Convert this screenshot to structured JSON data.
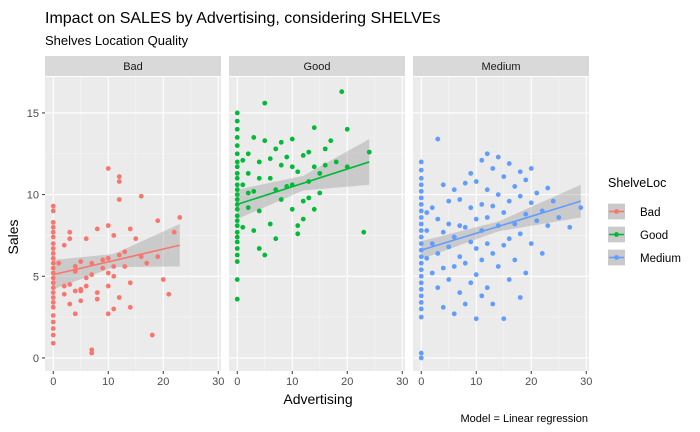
{
  "chart_data": {
    "type": "scatter",
    "title": "Impact on SALES by Advertising, considering SHELVEs",
    "subtitle": "Shelves Location Quality",
    "xlabel": "Advertising",
    "ylabel": "Sales",
    "caption": "Model = Linear regression",
    "xlim": [
      -1.5,
      30.5
    ],
    "ylim": [
      -0.8,
      17.2
    ],
    "x_ticks": [
      0,
      10,
      20,
      30
    ],
    "y_ticks": [
      0,
      5,
      10,
      15
    ],
    "legend": {
      "title": "ShelveLoc",
      "position": "right",
      "entries": [
        "Bad",
        "Good",
        "Medium"
      ]
    },
    "panels": [
      {
        "name": "Bad",
        "color": "#F8766D",
        "fit": {
          "x0": 0,
          "y0": 5.1,
          "x1": 23,
          "y1": 6.9,
          "band": [
            [
              0,
              0.9
            ],
            [
              11,
              0.4
            ],
            [
              23,
              1.3
            ]
          ]
        },
        "points": [
          [
            0,
            9.3
          ],
          [
            0,
            9.0
          ],
          [
            0,
            8.3
          ],
          [
            0,
            8.0
          ],
          [
            0,
            7.7
          ],
          [
            0,
            7.4
          ],
          [
            0,
            7.0
          ],
          [
            0,
            6.7
          ],
          [
            0,
            6.4
          ],
          [
            0,
            6.1
          ],
          [
            0,
            5.8
          ],
          [
            0,
            5.5
          ],
          [
            0,
            5.2
          ],
          [
            0,
            4.9
          ],
          [
            0,
            4.6
          ],
          [
            0,
            4.3
          ],
          [
            0,
            4.0
          ],
          [
            0,
            3.7
          ],
          [
            0,
            3.4
          ],
          [
            0,
            3.1
          ],
          [
            0,
            2.6
          ],
          [
            0,
            2.2
          ],
          [
            0,
            1.8
          ],
          [
            0,
            1.4
          ],
          [
            0,
            0.9
          ],
          [
            1,
            5.8
          ],
          [
            2,
            6.9
          ],
          [
            2,
            4.4
          ],
          [
            2,
            3.9
          ],
          [
            3,
            4.5
          ],
          [
            3,
            7.7
          ],
          [
            3,
            7.3
          ],
          [
            3,
            3.3
          ],
          [
            4,
            4.1
          ],
          [
            4,
            5.6
          ],
          [
            4,
            5.3
          ],
          [
            4,
            2.7
          ],
          [
            5,
            5.9
          ],
          [
            5,
            4.2
          ],
          [
            5,
            4.1
          ],
          [
            5,
            3.5
          ],
          [
            6,
            4.9
          ],
          [
            6,
            4.4
          ],
          [
            6,
            7.3
          ],
          [
            7,
            5.1
          ],
          [
            7,
            5.8
          ],
          [
            7,
            0.5
          ],
          [
            7,
            0.3
          ],
          [
            8,
            4.0
          ],
          [
            8,
            3.6
          ],
          [
            8,
            7.9
          ],
          [
            9,
            5.5
          ],
          [
            9,
            6.0
          ],
          [
            10,
            11.6
          ],
          [
            10,
            8.1
          ],
          [
            10,
            6.1
          ],
          [
            10,
            5.2
          ],
          [
            10,
            4.4
          ],
          [
            10,
            2.7
          ],
          [
            11,
            7.5
          ],
          [
            11,
            5.6
          ],
          [
            11,
            5.0
          ],
          [
            11,
            3.0
          ],
          [
            12,
            10.8
          ],
          [
            12,
            11.1
          ],
          [
            12,
            9.7
          ],
          [
            12,
            6.3
          ],
          [
            12,
            3.7
          ],
          [
            13,
            6.5
          ],
          [
            13,
            5.6
          ],
          [
            14,
            7.9
          ],
          [
            14,
            4.6
          ],
          [
            14,
            3.1
          ],
          [
            15,
            7.3
          ],
          [
            16,
            6.2
          ],
          [
            16,
            9.9
          ],
          [
            17,
            5.8
          ],
          [
            18,
            1.4
          ],
          [
            19,
            8.4
          ],
          [
            19,
            6.2
          ],
          [
            20,
            4.8
          ],
          [
            21,
            3.9
          ],
          [
            22,
            7.7
          ],
          [
            23,
            8.6
          ]
        ]
      },
      {
        "name": "Good",
        "color": "#00BA38",
        "fit": {
          "x0": 0,
          "y0": 9.4,
          "x1": 24,
          "y1": 12.0,
          "band": [
            [
              0,
              0.9
            ],
            [
              12,
              0.45
            ],
            [
              24,
              1.4
            ]
          ]
        },
        "points": [
          [
            0,
            15.0
          ],
          [
            0,
            14.5
          ],
          [
            0,
            14.0
          ],
          [
            0,
            13.5
          ],
          [
            0,
            13.0
          ],
          [
            0,
            12.5
          ],
          [
            0,
            12.0
          ],
          [
            0,
            11.7
          ],
          [
            0,
            11.3
          ],
          [
            0,
            11.0
          ],
          [
            0,
            10.6
          ],
          [
            0,
            10.3
          ],
          [
            0,
            10.0
          ],
          [
            0,
            9.7
          ],
          [
            0,
            9.4
          ],
          [
            0,
            9.1
          ],
          [
            0,
            8.7
          ],
          [
            0,
            8.4
          ],
          [
            0,
            8.1
          ],
          [
            0,
            7.7
          ],
          [
            0,
            7.4
          ],
          [
            0,
            7.1
          ],
          [
            0,
            6.7
          ],
          [
            0,
            6.3
          ],
          [
            0,
            5.9
          ],
          [
            0,
            4.8
          ],
          [
            0,
            3.6
          ],
          [
            1,
            12.1
          ],
          [
            1,
            10.6
          ],
          [
            1,
            8.0
          ],
          [
            2,
            12.5
          ],
          [
            2,
            11.3
          ],
          [
            2,
            10.1
          ],
          [
            2,
            9.2
          ],
          [
            3,
            13.5
          ],
          [
            3,
            10.2
          ],
          [
            3,
            7.8
          ],
          [
            4,
            9.0
          ],
          [
            4,
            11.0
          ],
          [
            4,
            6.7
          ],
          [
            4,
            12.0
          ],
          [
            5,
            15.6
          ],
          [
            5,
            6.3
          ],
          [
            5,
            13.3
          ],
          [
            6,
            12.2
          ],
          [
            6,
            11.0
          ],
          [
            6,
            8.2
          ],
          [
            7,
            12.8
          ],
          [
            7,
            10.3
          ],
          [
            7,
            7.3
          ],
          [
            8,
            13.2
          ],
          [
            8,
            9.7
          ],
          [
            8,
            11.8
          ],
          [
            9,
            10.5
          ],
          [
            9,
            12.3
          ],
          [
            10,
            10.6
          ],
          [
            10,
            13.4
          ],
          [
            10,
            9.1
          ],
          [
            10,
            11.7
          ],
          [
            11,
            8.1
          ],
          [
            11,
            7.6
          ],
          [
            11,
            11.4
          ],
          [
            12,
            9.6
          ],
          [
            12,
            12.4
          ],
          [
            12,
            8.5
          ],
          [
            13,
            9.8
          ],
          [
            13,
            12.6
          ],
          [
            13,
            10.8
          ],
          [
            14,
            14.1
          ],
          [
            14,
            11.7
          ],
          [
            14,
            9.1
          ],
          [
            15,
            10.1
          ],
          [
            15,
            11.3
          ],
          [
            16,
            12.8
          ],
          [
            16,
            11.8
          ],
          [
            17,
            13.3
          ],
          [
            18,
            12.0
          ],
          [
            19,
            16.3
          ],
          [
            20,
            14.0
          ],
          [
            20,
            11.7
          ],
          [
            23,
            7.7
          ],
          [
            24,
            12.6
          ]
        ]
      },
      {
        "name": "Medium",
        "color": "#619CFF",
        "fit": {
          "x0": 0,
          "y0": 6.6,
          "x1": 29,
          "y1": 9.6,
          "band": [
            [
              0,
              0.55
            ],
            [
              14,
              0.3
            ],
            [
              29,
              1.0
            ]
          ]
        },
        "points": [
          [
            0,
            12.0
          ],
          [
            0,
            11.5
          ],
          [
            0,
            11.0
          ],
          [
            0,
            10.6
          ],
          [
            0,
            10.2
          ],
          [
            0,
            9.8
          ],
          [
            0,
            9.4
          ],
          [
            0,
            9.0
          ],
          [
            0,
            8.6
          ],
          [
            0,
            8.2
          ],
          [
            0,
            7.8
          ],
          [
            0,
            7.4
          ],
          [
            0,
            7.0
          ],
          [
            0,
            6.6
          ],
          [
            0,
            6.2
          ],
          [
            0,
            5.8
          ],
          [
            0,
            5.4
          ],
          [
            0,
            5.0
          ],
          [
            0,
            4.6
          ],
          [
            0,
            4.2
          ],
          [
            0,
            3.8
          ],
          [
            0,
            3.4
          ],
          [
            0,
            3.0
          ],
          [
            0,
            2.5
          ],
          [
            0,
            0.3
          ],
          [
            0,
            0.0
          ],
          [
            1,
            8.9
          ],
          [
            1,
            7.8
          ],
          [
            1,
            6.1
          ],
          [
            2,
            7.0
          ],
          [
            2,
            9.2
          ],
          [
            2,
            5.2
          ],
          [
            3,
            13.4
          ],
          [
            3,
            8.5
          ],
          [
            3,
            6.4
          ],
          [
            3,
            4.3
          ],
          [
            4,
            7.7
          ],
          [
            4,
            10.6
          ],
          [
            4,
            5.5
          ],
          [
            4,
            3.1
          ],
          [
            5,
            6.8
          ],
          [
            5,
            9.6
          ],
          [
            5,
            8.2
          ],
          [
            5,
            4.8
          ],
          [
            6,
            7.4
          ],
          [
            6,
            10.3
          ],
          [
            6,
            5.6
          ],
          [
            6,
            2.7
          ],
          [
            7,
            8.1
          ],
          [
            7,
            9.7
          ],
          [
            7,
            6.2
          ],
          [
            7,
            4.0
          ],
          [
            8,
            10.7
          ],
          [
            8,
            8.0
          ],
          [
            8,
            5.8
          ],
          [
            8,
            3.3
          ],
          [
            9,
            7.1
          ],
          [
            9,
            9.2
          ],
          [
            9,
            11.3
          ],
          [
            9,
            4.6
          ],
          [
            10,
            8.5
          ],
          [
            10,
            10.8
          ],
          [
            10,
            6.7
          ],
          [
            10,
            5.1
          ],
          [
            10,
            2.4
          ],
          [
            11,
            7.8
          ],
          [
            11,
            12.1
          ],
          [
            11,
            9.4
          ],
          [
            11,
            6.0
          ],
          [
            11,
            3.8
          ],
          [
            12,
            8.6
          ],
          [
            12,
            10.3
          ],
          [
            12,
            12.5
          ],
          [
            12,
            7.0
          ],
          [
            12,
            4.3
          ],
          [
            13,
            9.3
          ],
          [
            13,
            11.6
          ],
          [
            13,
            6.4
          ],
          [
            13,
            3.3
          ],
          [
            14,
            8.1
          ],
          [
            14,
            10.0
          ],
          [
            14,
            12.3
          ],
          [
            14,
            5.6
          ],
          [
            15,
            8.9
          ],
          [
            15,
            11.1
          ],
          [
            15,
            6.9
          ],
          [
            15,
            2.4
          ],
          [
            16,
            9.6
          ],
          [
            16,
            7.3
          ],
          [
            16,
            11.9
          ],
          [
            16,
            4.8
          ],
          [
            17,
            8.2
          ],
          [
            17,
            10.5
          ],
          [
            17,
            6.0
          ],
          [
            18,
            9.9
          ],
          [
            18,
            11.4
          ],
          [
            18,
            7.6
          ],
          [
            18,
            3.7
          ],
          [
            19,
            8.8
          ],
          [
            19,
            10.9
          ],
          [
            19,
            5.2
          ],
          [
            20,
            9.5
          ],
          [
            20,
            7.0
          ],
          [
            20,
            11.6
          ],
          [
            21,
            8.4
          ],
          [
            21,
            10.1
          ],
          [
            22,
            9.0
          ],
          [
            22,
            6.4
          ],
          [
            23,
            10.4
          ],
          [
            23,
            8.1
          ],
          [
            24,
            9.6
          ],
          [
            25,
            8.6
          ],
          [
            27,
            8.0
          ],
          [
            29,
            9.2
          ]
        ]
      }
    ]
  }
}
